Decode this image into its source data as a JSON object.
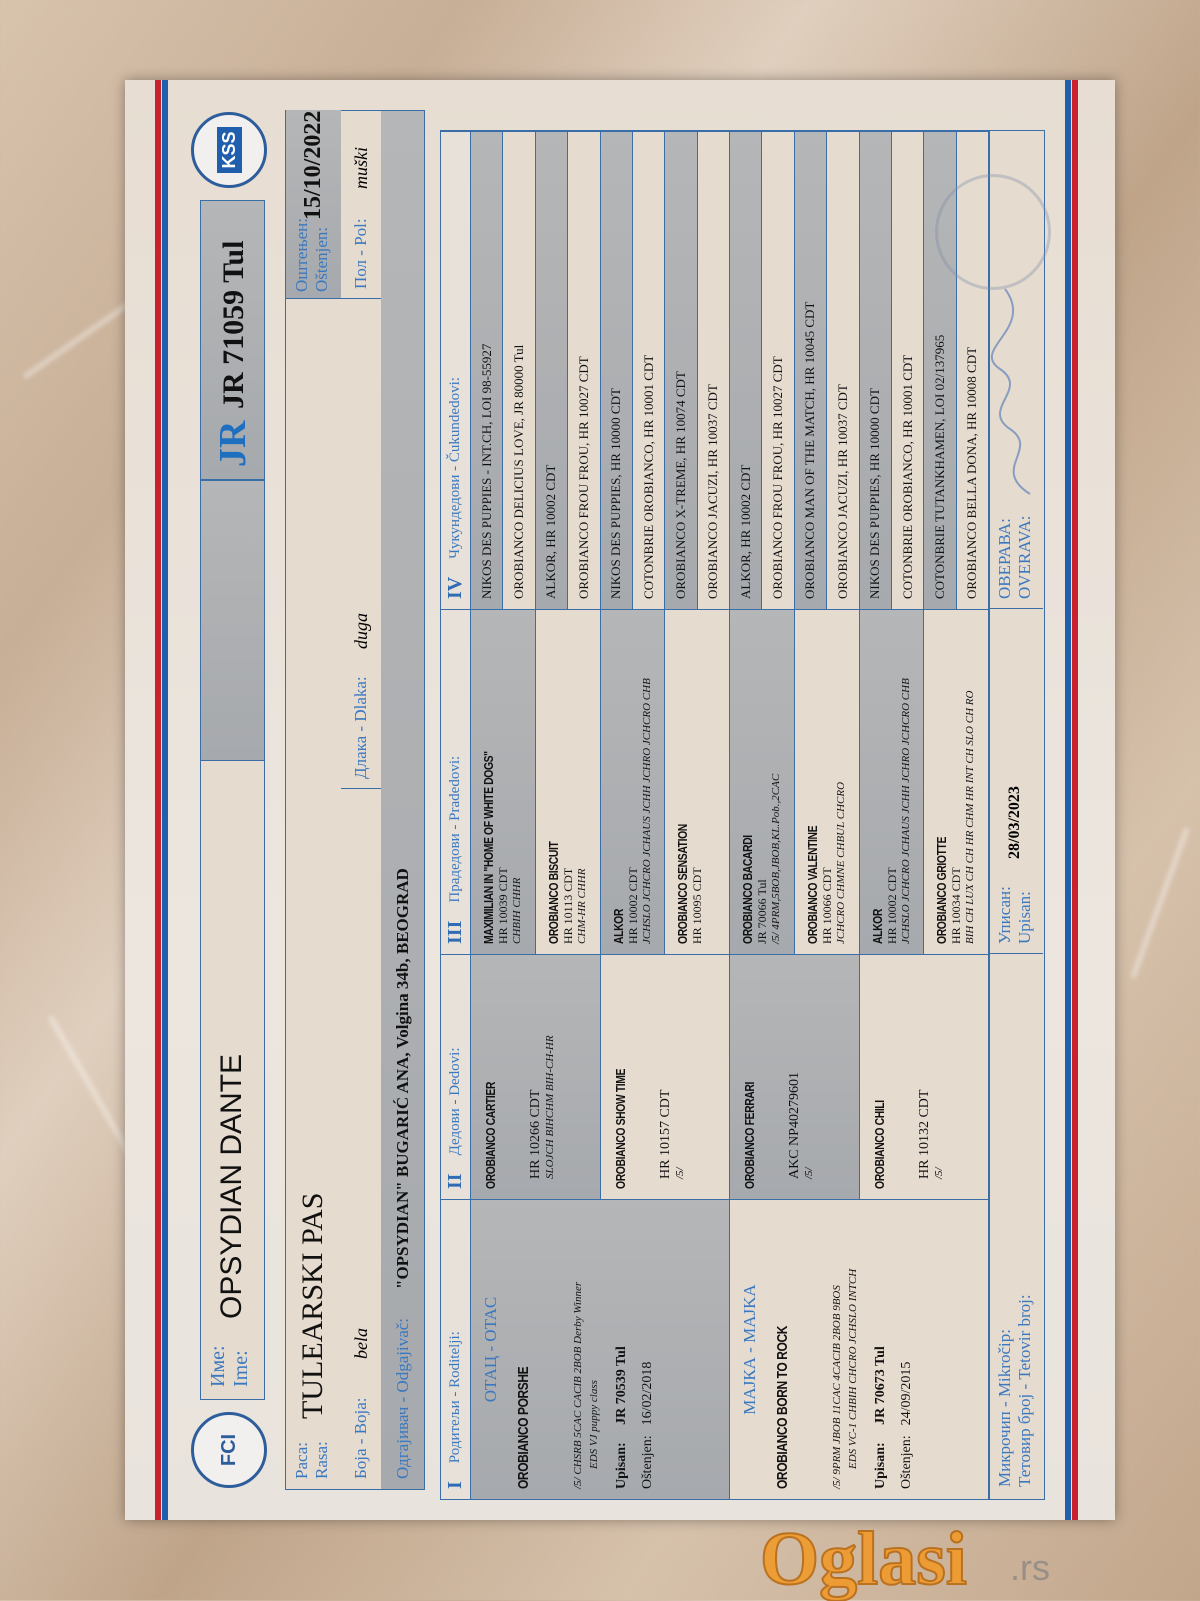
{
  "colors": {
    "accent_blue": "#3a78c0",
    "flag_red": "#c8232c",
    "flag_blue": "#1f5fae",
    "cell_gray": "#a6a9ad",
    "cell_cream": "#e6dbcf",
    "watermark": "#f19a2a"
  },
  "logos": {
    "left": "FCI",
    "right": "KSS"
  },
  "header": {
    "name_label_cyr": "Име:",
    "name_label_lat": "Ime:",
    "name": "OPSYDIAN DANTE",
    "reg_prefix": "JR",
    "reg_number": "JR 71059 Tul",
    "breed_label_cyr": "Раса:",
    "breed_label_lat": "Rasa:",
    "breed": "TULEARSKI PAS",
    "whelped_label_cyr": "Оштењен:",
    "whelped_label_lat": "Oštenjen:",
    "whelped": "15/10/2022",
    "color_label": "Боја - Boja:",
    "color": "bela",
    "coat_label": "Длака - Dlaka:",
    "coat": "duga",
    "sex_label": "Пол - Pol:",
    "sex": "muški",
    "breeder_label": "Одгајивач - Odgajivač:",
    "breeder": "\"OPSYDIAN\" BUGARIĆ ANA, Volgina 34b, BEOGRAD"
  },
  "columns": [
    {
      "num": "I",
      "label": "Родитељи - Roditelji:"
    },
    {
      "num": "II",
      "label": "Дедови - Dedovi:"
    },
    {
      "num": "III",
      "label": "Прадедови - Pradedovi:"
    },
    {
      "num": "IV",
      "label": "Чукундедови - Čukundedovi:"
    }
  ],
  "parents": [
    {
      "role": "ОТАЦ - OTAC",
      "name": "OROBIANCO PORSHE",
      "titles": "/5/ CHSRB 5CAC CACIB 2BOB Derby Winner",
      "titles2": "EDS VJ puppy class",
      "upisan_label": "Upisan:",
      "reg": "JR 70539 Tul",
      "dob_label": "Oštenjen:",
      "dob": "16/02/2018"
    },
    {
      "role": "МАЈКА - MAJKA",
      "name": "OROBIANCO BORN TO ROCK",
      "titles": "/5/ 9PRM JBOB 11CAC 4CACIB 2BOB 9BOS",
      "titles2": "EDS VC-1 CHBIH CHCRO JCHSLO INTCH",
      "upisan_label": "Upisan:",
      "reg": "JR 70673 Tul",
      "dob_label": "Oštenjen:",
      "dob": "24/09/2015"
    }
  ],
  "grandparents": [
    {
      "name": "OROBIANCO CARTIER",
      "reg": "HR 10266 CDT",
      "titles": "SLOJCH BIHCHM BIH-CH-HR"
    },
    {
      "name": "OROBIANCO SHOW TIME",
      "reg": "HR 10157 CDT",
      "titles": "/5/"
    },
    {
      "name": "OROBIANCO FERRARI",
      "reg": "AKC NP40279601",
      "titles": "/5/"
    },
    {
      "name": "OROBIANCO CHILI",
      "reg": "HR 10132 CDT",
      "titles": "/5/"
    }
  ],
  "great_grandparents": [
    {
      "name": "MAXIMILIAN IN \"HOME OF WHITE DOGS\"",
      "reg": "HR 10039 CDT",
      "titles": "CHBIH CHHR"
    },
    {
      "name": "OROBIANCO BISCUIT",
      "reg": "HR 10113 CDT",
      "titles": "CHM-HR CHHR"
    },
    {
      "name": "ALKOR",
      "reg": "HR 10002 CDT",
      "titles": "JCHSLO JCHCRO JCHAUS JCHH JCHRO JCHCRO CHB"
    },
    {
      "name": "OROBIANCO SENSATION",
      "reg": "HR 10095 CDT",
      "titles": ""
    },
    {
      "name": "OROBIANCO BACARDI",
      "reg": "JR 70066 Tul",
      "titles": "/5/ 4PRM,5BOB,JBOB,KL.Pob.,2CAC"
    },
    {
      "name": "OROBIANCO VALENTINE",
      "reg": "HR 10066 CDT",
      "titles": "JCHCRO CHMNE CHBUL CHCRO"
    },
    {
      "name": "ALKOR",
      "reg": "HR 10002 CDT",
      "titles": "JCHSLO JCHCRO JCHAUS JCHH JCHRO JCHCRO CHB"
    },
    {
      "name": "OROBIANCO GRIOTTE",
      "reg": "HR 10034 CDT",
      "titles": "BIH CH LUX CH CH HR CHM HR INT CH SLO CH RO"
    }
  ],
  "great_great_grandparents": [
    "NIKOS DES PUPPIES - INT.CH, LOI 98-55927",
    "OROBIANCO DELICIUS LOVE, JR 80000 Tul",
    "ALKOR, HR 10002 CDT",
    "OROBIANCO FROU FROU, HR 10027 CDT",
    "NIKOS DES PUPPIES, HR 10000 CDT",
    "COTONBRIE OROBIANCO, HR 10001 CDT",
    "OROBIANCO X-TREME, HR 10074 CDT",
    "OROBIANCO JACUZI, HR 10037 CDT",
    "ALKOR, HR 10002 CDT",
    "OROBIANCO FROU FROU, HR 10027 CDT",
    "OROBIANCO MAN OF THE MATCH, HR 10045 CDT",
    "OROBIANCO JACUZI, HR 10037 CDT",
    "NIKOS DES PUPPIES, HR 10000 CDT",
    "COTONBRIE OROBIANCO, HR 10001 CDT",
    "COTONBRIE TUTANKHAMEN, LOI 02/137965",
    "OROBIANCO BELLA DONA, HR 10008 CDT"
  ],
  "footer": {
    "microchip_label": "Микрочип - Mikročip:",
    "tattoo_label": "Тетовир број - Tetovir broj:",
    "registered_label_cyr": "Уписан:",
    "registered_label_lat": "Upisan:",
    "registered": "28/03/2023",
    "verify_label_cyr": "ОВЕРАВА:",
    "verify_label_lat": "OVERAVA:"
  },
  "watermark": {
    "brand": "Oglasi",
    ".rs": ".rs",
    "suffix": ".rs"
  }
}
